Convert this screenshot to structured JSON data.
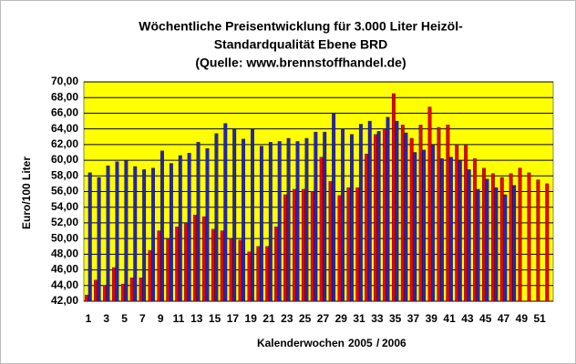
{
  "chart_data": {
    "type": "bar",
    "title": [
      "Wöchentliche Preisentwicklung für 3.000 Liter Heizöl-",
      "Standardqualität Ebene BRD",
      "(Quelle: www.brennstoffhandel.de)"
    ],
    "y_label": "Euro/100 Liter",
    "x_label": "Kalenderwochen",
    "legend_separator": "/",
    "categories": [
      "1",
      null,
      "3",
      null,
      "5",
      null,
      "7",
      null,
      "9",
      null,
      "11",
      null,
      "13",
      null,
      "15",
      null,
      "17",
      null,
      "19",
      null,
      "21",
      null,
      "23",
      null,
      "25",
      null,
      "27",
      null,
      "29",
      null,
      "31",
      null,
      "33",
      null,
      "35",
      null,
      "37",
      null,
      "39",
      null,
      "41",
      null,
      "43",
      null,
      "45",
      null,
      "47",
      null,
      "49",
      null,
      "51",
      null
    ],
    "series": [
      {
        "name": "2005",
        "color": "#e80000",
        "values": [
          42.8,
          44.7,
          44.0,
          46.3,
          44.2,
          45.0,
          45.0,
          48.5,
          51.0,
          50.0,
          51.5,
          52.0,
          53.0,
          52.8,
          51.2,
          51.0,
          50.0,
          49.8,
          48.3,
          49.0,
          49.0,
          51.5,
          55.6,
          56.3,
          56.3,
          56.0,
          60.4,
          57.3,
          55.5,
          56.5,
          56.5,
          60.8,
          63.3,
          64.0,
          68.5,
          64.5,
          62.8,
          64.5,
          66.8,
          64.2,
          64.5,
          62.0,
          62.0,
          60.2,
          59.0,
          58.3,
          57.8,
          58.3,
          59.0,
          58.4,
          57.5,
          57.0
        ]
      },
      {
        "name": "2006",
        "color": "#2424b8",
        "values": [
          58.4,
          57.8,
          59.3,
          59.8,
          60.0,
          59.2,
          58.8,
          59.0,
          61.2,
          59.6,
          60.6,
          60.9,
          62.3,
          61.5,
          63.4,
          64.7,
          64.0,
          62.7,
          64.0,
          61.8,
          62.3,
          62.4,
          62.8,
          62.4,
          62.8,
          63.6,
          63.6,
          66.0,
          64.0,
          63.3,
          64.6,
          65.0,
          63.7,
          65.5,
          65.0,
          63.5,
          61.0,
          61.3,
          62.0,
          60.2,
          60.4,
          60.0,
          58.8,
          56.3,
          57.6,
          56.5,
          55.6,
          56.8,
          null,
          null,
          null,
          null
        ]
      }
    ],
    "ylim": [
      42,
      70
    ],
    "yticks": [
      {
        "value": 42,
        "label": "42,00"
      },
      {
        "value": 44,
        "label": "44,00"
      },
      {
        "value": 46,
        "label": "46,00"
      },
      {
        "value": 48,
        "label": "48,00"
      },
      {
        "value": 50,
        "label": "50,00"
      },
      {
        "value": 52,
        "label": "52,00"
      },
      {
        "value": 54,
        "label": "54,00"
      },
      {
        "value": 56,
        "label": "56,00"
      },
      {
        "value": 58,
        "label": "58,00"
      },
      {
        "value": 60,
        "label": "60,00"
      },
      {
        "value": 62,
        "label": "62,00"
      },
      {
        "value": 64,
        "label": "64,00"
      },
      {
        "value": 66,
        "label": "66,00"
      },
      {
        "value": 68,
        "label": "68,00"
      },
      {
        "value": 70,
        "label": "70,00"
      }
    ],
    "grid": true,
    "plot_background": "#ffff00"
  }
}
